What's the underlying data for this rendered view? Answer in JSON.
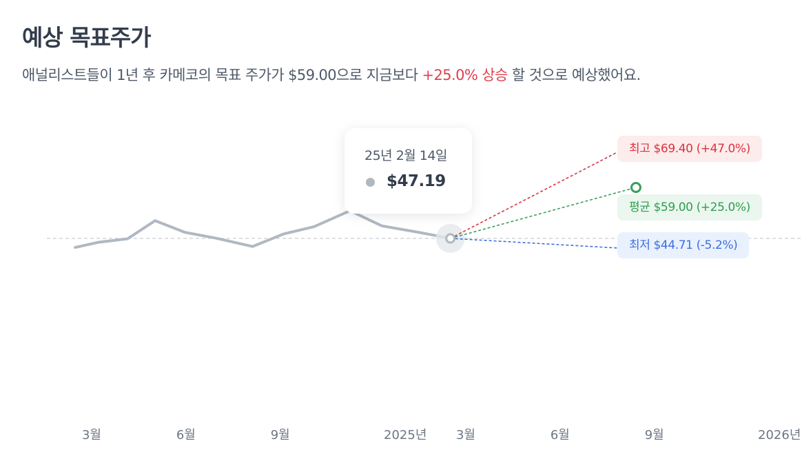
{
  "header": {
    "title": "예상 목표주가",
    "subtitle_prefix": "애널리스트들이 1년 후 카메코의 목표 주가가 $59.00으로 지금보다 ",
    "subtitle_highlight": "+25.0% 상승",
    "subtitle_suffix": " 할 것으로 예상했어요."
  },
  "tooltip": {
    "date": "25년 2월 14일",
    "price": "$47.19"
  },
  "targets": {
    "high_label": "최고 $69.40 (+47.0%)",
    "avg_label": "평균 $59.00 (+25.0%)",
    "low_label": "최저 $44.71 (-5.2%)"
  },
  "colors": {
    "history_line": "#b0b8c1",
    "high": "#d8333f",
    "avg": "#3a9e5a",
    "low": "#3d6fe0",
    "highlight_text": "#e0404f"
  },
  "chart_data": {
    "type": "line",
    "xlabel": "",
    "ylabel": "",
    "x_ticks": [
      "3월",
      "6월",
      "9월",
      "2025년",
      "3월",
      "6월",
      "9월",
      "2026년"
    ],
    "x_tick_dates": [
      "2024-03",
      "2024-06",
      "2024-09",
      "2025-01",
      "2025-03",
      "2025-06",
      "2025-09",
      "2026-01"
    ],
    "ylim": [
      30,
      80
    ],
    "reference_line": 47.19,
    "grid": false,
    "series": [
      {
        "kind": "history",
        "x": [
          "2024-02-14",
          "2024-03-08",
          "2024-04-05",
          "2024-05-02",
          "2024-05-31",
          "2024-07-01",
          "2024-08-05",
          "2024-09-04",
          "2024-10-04",
          "2024-11-08",
          "2024-12-09",
          "2025-01-14",
          "2025-02-14"
        ],
        "y": [
          45.1,
          46.3,
          47.1,
          51.3,
          48.6,
          47.2,
          45.3,
          48.2,
          49.9,
          53.6,
          50.1,
          48.6,
          47.19
        ]
      },
      {
        "name": "최고",
        "kind": "target",
        "x": [
          "2025-02-14",
          "2025-08-14"
        ],
        "y": [
          47.19,
          69.4
        ]
      },
      {
        "name": "평균",
        "kind": "target",
        "x": [
          "2025-02-14",
          "2025-08-14"
        ],
        "y": [
          47.19,
          59.0
        ]
      },
      {
        "name": "최저",
        "kind": "target",
        "x": [
          "2025-02-14",
          "2025-08-14"
        ],
        "y": [
          47.19,
          44.71
        ]
      }
    ]
  }
}
